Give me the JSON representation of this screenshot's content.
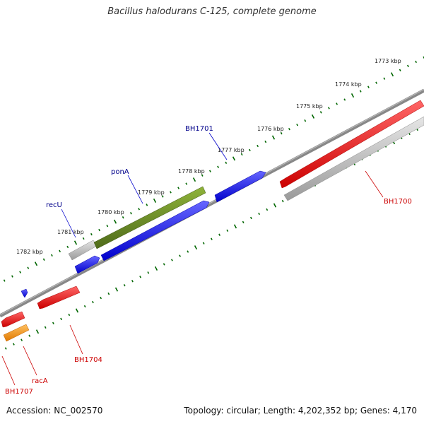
{
  "title": "Bacillus halodurans C-125, complete genome",
  "footer": {
    "accession": "Accession: NC_002570",
    "summary": "Topology: circular; Length: 4,202,352 bp; Genes: 4,170"
  },
  "colors": {
    "forward_gene": "#0000ee",
    "reverse_gene": "#ee0000",
    "pseudo_gene": "#bbbbbb",
    "rna_feature": "#6b8e23",
    "orange_gene": "#ff9900",
    "backbone": "#888888",
    "tick": "#006600",
    "forward_label": "#00008b",
    "reverse_label": "#cc0000"
  },
  "kbp_labels": [
    "1773 kbp",
    "1774 kbp",
    "1775 kbp",
    "1776 kbp",
    "1777 kbp",
    "1778 kbp",
    "1779 kbp",
    "1780 kbp",
    "1781 kbp",
    "1782 kbp"
  ],
  "gene_labels": {
    "forward": [
      "BH1701",
      "ponA",
      "recU"
    ],
    "reverse": [
      "BH1700",
      "BH1704",
      "racA",
      "BH1707"
    ]
  }
}
